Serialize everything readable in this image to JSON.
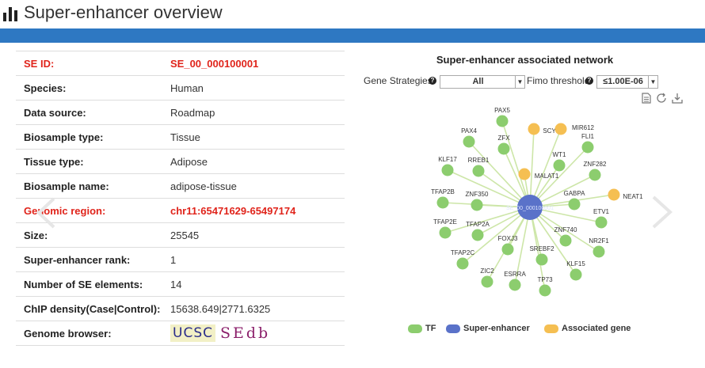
{
  "page": {
    "title": "Super-enhancer overview"
  },
  "info": {
    "rows": [
      {
        "label": "SE ID:",
        "value": "SE_00_000100001"
      },
      {
        "label": "Species:",
        "value": "Human"
      },
      {
        "label": "Data source:",
        "value": "Roadmap"
      },
      {
        "label": "Biosample type:",
        "value": "Tissue"
      },
      {
        "label": "Tissue type:",
        "value": "Adipose"
      },
      {
        "label": "Biosample name:",
        "value": "adipose-tissue"
      },
      {
        "label": "Genomic region:",
        "value": "chr11:65471629-65497174"
      },
      {
        "label": "Size:",
        "value": "25545"
      },
      {
        "label": "Super-enhancer rank:",
        "value": "1"
      },
      {
        "label": "Number of SE elements:",
        "value": "14"
      },
      {
        "label": "ChIP density(Case|Control):",
        "value": "15638.649|2771.6325"
      },
      {
        "label": "Genome browser:",
        "value": ""
      }
    ],
    "browser_ucsc": "UCSC",
    "browser_sedb": "SEdb"
  },
  "network": {
    "title": "Super-enhancer associated network",
    "gene_strategies_label": "Gene Strategies",
    "gene_strategies_value": "All",
    "fimo_label": "Fimo threshold",
    "fimo_value": "≤1.00E-06",
    "center_label": "SE_00_000100001",
    "colors": {
      "tf": "#8ccd6e",
      "se": "#5a72c9",
      "gene": "#f5bf52",
      "edge": "#cde6a8"
    },
    "legend": {
      "tf": "TF",
      "se": "Super-enhancer",
      "gene": "Associated gene"
    },
    "nodes": [
      {
        "label": "PAX5",
        "type": "tf"
      },
      {
        "label": "PAX4",
        "type": "tf"
      },
      {
        "label": "ZFX",
        "type": "tf"
      },
      {
        "label": "SCYL1",
        "type": "gene"
      },
      {
        "label": "MIR612",
        "type": "gene"
      },
      {
        "label": "FLI1",
        "type": "tf"
      },
      {
        "label": "WT1",
        "type": "tf"
      },
      {
        "label": "KLF17",
        "type": "tf"
      },
      {
        "label": "RREB1",
        "type": "tf"
      },
      {
        "label": "MALAT1",
        "type": "gene"
      },
      {
        "label": "ZNF282",
        "type": "tf"
      },
      {
        "label": "TFAP2B",
        "type": "tf"
      },
      {
        "label": "ZNF350",
        "type": "tf"
      },
      {
        "label": "GABPA",
        "type": "tf"
      },
      {
        "label": "NEAT1",
        "type": "gene"
      },
      {
        "label": "ETV1",
        "type": "tf"
      },
      {
        "label": "TFAP2E",
        "type": "tf"
      },
      {
        "label": "TFAP2A",
        "type": "tf"
      },
      {
        "label": "ZNF740",
        "type": "tf"
      },
      {
        "label": "FOXJ3",
        "type": "tf"
      },
      {
        "label": "NR2F1",
        "type": "tf"
      },
      {
        "label": "TFAP2C",
        "type": "tf"
      },
      {
        "label": "SREBF2",
        "type": "tf"
      },
      {
        "label": "KLF15",
        "type": "tf"
      },
      {
        "label": "ZIC2",
        "type": "tf"
      },
      {
        "label": "ESRRA",
        "type": "tf"
      },
      {
        "label": "TP73",
        "type": "tf"
      }
    ]
  }
}
